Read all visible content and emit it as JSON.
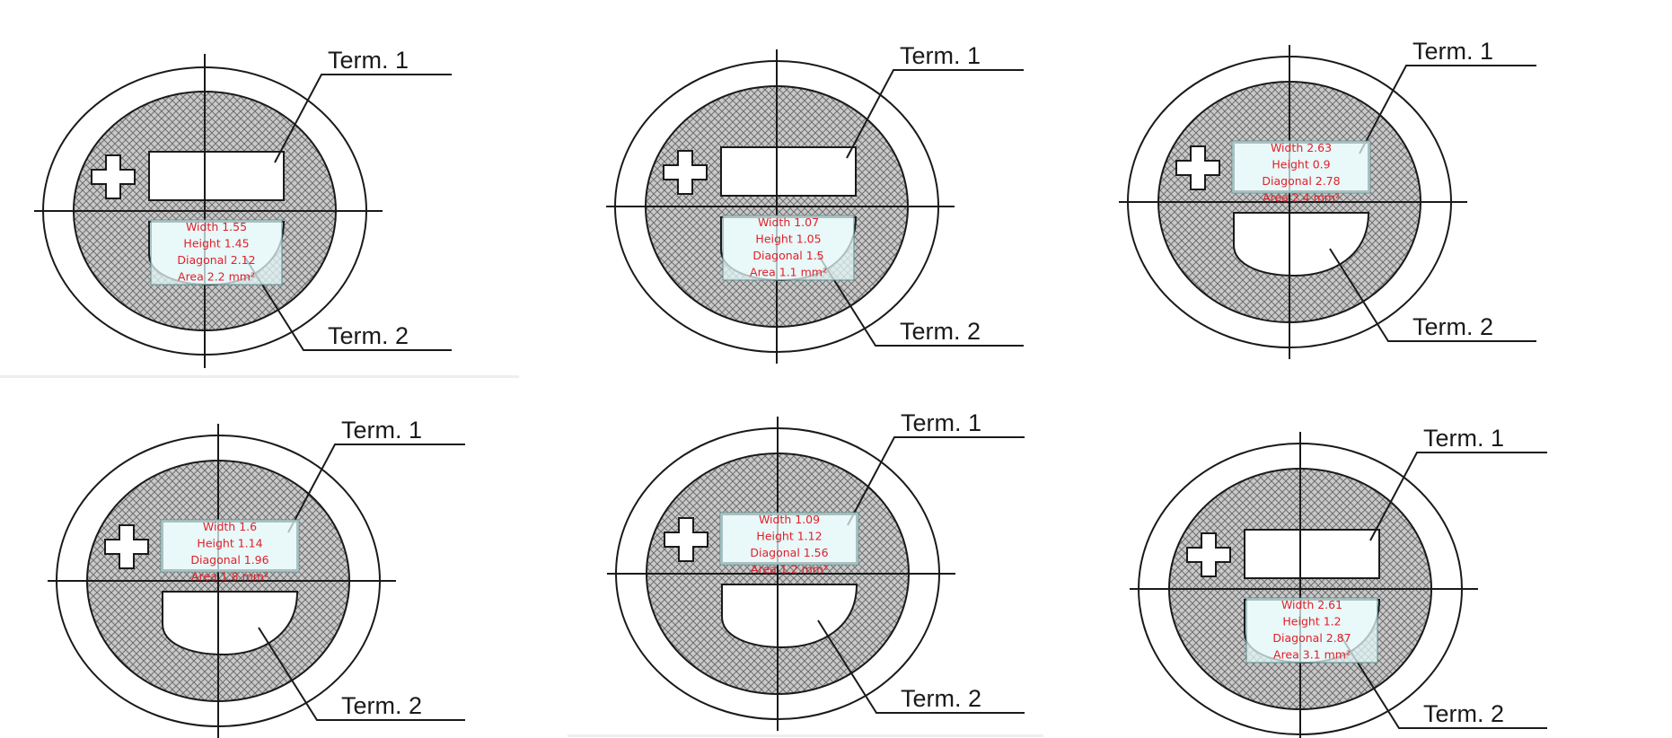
{
  "labels": {
    "term1": "Term. 1",
    "term2": "Term. 2"
  },
  "colors": {
    "hatch_fill": "#c9c9c9",
    "hatch_line": "#6f6f6f",
    "outline": "#1a1a1a",
    "measure_text": "#e0202a",
    "measure_box_fill": "#e2f6f6",
    "measure_box_stroke": "#5a8f8f"
  },
  "panels": [
    {
      "id": "panel-1",
      "highlight": "lower",
      "measure": {
        "width": "Width  1.55",
        "height": "Height  1.45",
        "diagonal": "Diagonal  2.12",
        "area": "Area 2.2 mm²"
      }
    },
    {
      "id": "panel-2",
      "highlight": "lower",
      "measure": {
        "width": "Width  1.07",
        "height": "Height  1.05",
        "diagonal": "Diagonal  1.5",
        "area": "Area 1.1 mm²"
      }
    },
    {
      "id": "panel-3",
      "highlight": "upper",
      "measure": {
        "width": "Width  2.63",
        "height": "Height  0.9",
        "diagonal": "Diagonal  2.78",
        "area": "Area 2.4 mm²"
      }
    },
    {
      "id": "panel-4",
      "highlight": "upper",
      "measure": {
        "width": "Width  1.6",
        "height": "Height  1.14",
        "diagonal": "Diagonal  1.96",
        "area": "Area 1.8 mm²"
      }
    },
    {
      "id": "panel-5",
      "highlight": "upper",
      "measure": {
        "width": "Width  1.09",
        "height": "Height  1.12",
        "diagonal": "Diagonal  1.56",
        "area": "Area 1.2 mm²"
      }
    },
    {
      "id": "panel-6",
      "highlight": "lower",
      "measure": {
        "width": "Width  2.61",
        "height": "Height  1.2",
        "diagonal": "Diagonal  2.87",
        "area": "Area 3.1 mm²"
      }
    }
  ]
}
